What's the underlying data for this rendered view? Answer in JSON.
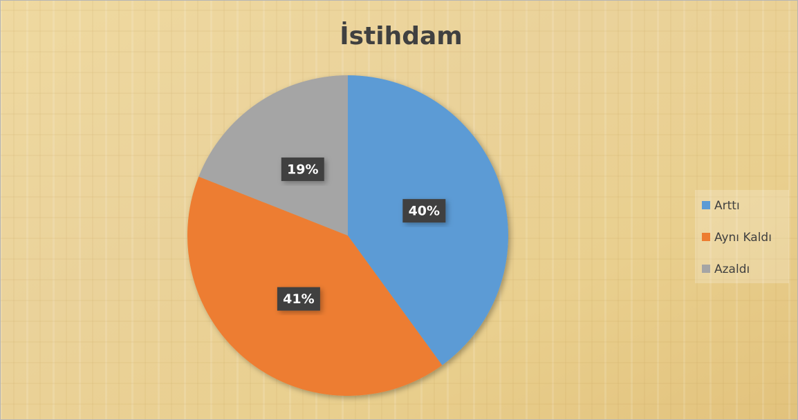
{
  "chart_data": {
    "type": "pie",
    "title": "İstihdam",
    "categories": [
      "Arttı",
      "Aynı Kaldı",
      "Azaldı"
    ],
    "values": [
      40,
      41,
      19
    ],
    "value_labels": [
      "40%",
      "41%",
      "19%"
    ],
    "colors": [
      "#5b9bd5",
      "#ed7d31",
      "#a5a5a5"
    ],
    "legend": "right"
  }
}
